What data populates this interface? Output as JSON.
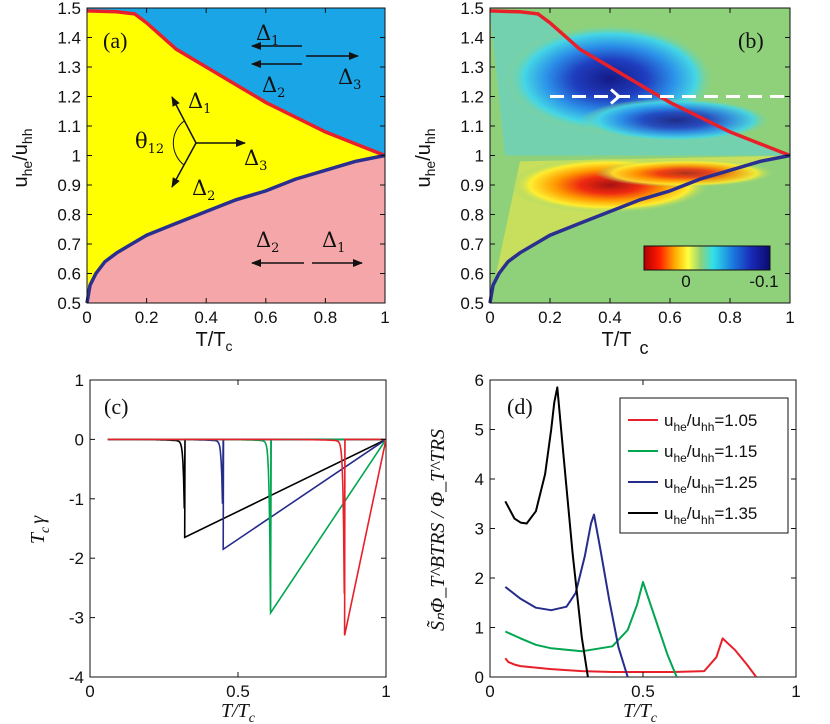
{
  "figure": {
    "panel_a": {
      "label": "(a)",
      "xlabel": "T/T",
      "xlabel_sub": "c",
      "ylabel": "u",
      "ylabel_sub1": "he",
      "ylabel_mid": "/u",
      "ylabel_sub2": "hh",
      "theta_label": "θ",
      "theta_sub": "12",
      "delta": "Δ",
      "idx1": "1",
      "idx2": "2",
      "idx3": "3",
      "colors": {
        "blue_region": "#1aa6e6",
        "yellow_region": "#ffff00",
        "pink_region": "#f4a6a8",
        "upper_boundary": "#e8202a",
        "lower_boundary": "#2b2f8f"
      }
    },
    "panel_b": {
      "label": "(b)",
      "xlabel": "T/T",
      "xlabel_sub": "c",
      "ylabel": "u",
      "ylabel_sub1": "he",
      "ylabel_mid": "/u",
      "ylabel_sub2": "hh",
      "colorbar_ticks": [
        "0",
        "-0.1"
      ],
      "colors": {
        "background": "#8fd17a"
      }
    },
    "panel_c": {
      "label": "(c)",
      "xlabel": "T/T",
      "xlabel_sub": "c",
      "ylabel": "T",
      "ylabel_sub": "c",
      "ylabel_sym": "γ"
    },
    "panel_d": {
      "label": "(d)",
      "xlabel": "T/T",
      "xlabel_sub": "c",
      "ylabel": "S̃ₙΦ_T^BTRS / Φ_T^TRS"
    }
  },
  "chart_data": [
    {
      "panel": "a",
      "type": "area",
      "x": [
        0,
        0.1,
        0.16,
        0.2,
        0.3,
        0.4,
        0.5,
        0.6,
        0.7,
        0.8,
        0.9,
        1.0
      ],
      "upper_boundary": [
        1.49,
        1.487,
        1.48,
        1.45,
        1.36,
        1.3,
        1.24,
        1.18,
        1.13,
        1.08,
        1.04,
        1.0
      ],
      "lower_boundary_x": [
        0,
        0.01,
        0.03,
        0.06,
        0.1,
        0.2,
        0.3,
        0.4,
        0.5,
        0.6,
        0.7,
        0.8,
        0.9,
        1.0
      ],
      "lower_boundary": [
        0.5,
        0.56,
        0.6,
        0.64,
        0.67,
        0.73,
        0.77,
        0.81,
        0.85,
        0.88,
        0.92,
        0.95,
        0.98,
        1.0
      ],
      "xlim": [
        0,
        1
      ],
      "ylim": [
        0.5,
        1.5
      ],
      "xticks": [
        "0",
        "0.2",
        "0.4",
        "0.6",
        "0.8",
        "1"
      ],
      "yticks": [
        "0.5",
        "0.6",
        "0.7",
        "0.8",
        "0.9",
        "1",
        "1.1",
        "1.2",
        "1.3",
        "1.4",
        "1.5"
      ]
    },
    {
      "panel": "b",
      "type": "heatmap",
      "xlim": [
        0,
        1
      ],
      "ylim": [
        0.5,
        1.5
      ],
      "dashed_line_y": 1.2,
      "xticks": [
        "0",
        "0.2",
        "0.4",
        "0.6",
        "0.8",
        "1"
      ],
      "yticks": [
        "0.5",
        "0.6",
        "0.7",
        "0.8",
        "0.9",
        "1",
        "1.1",
        "1.2",
        "1.3",
        "1.4",
        "1.5"
      ]
    },
    {
      "panel": "c",
      "type": "line",
      "xlim": [
        0,
        1
      ],
      "ylim": [
        -4,
        1
      ],
      "xticks": [
        "0",
        "0.5",
        "1"
      ],
      "yticks": [
        "-4",
        "-3",
        "-2",
        "-1",
        "0",
        "1"
      ],
      "series": [
        {
          "name": "1.35",
          "color": "#000000",
          "dip_x": 0.32,
          "min": -1.65
        },
        {
          "name": "1.25",
          "color": "#252c8a",
          "dip_x": 0.45,
          "min": -1.85
        },
        {
          "name": "1.15",
          "color": "#00a650",
          "dip_x": 0.61,
          "min": -2.92
        },
        {
          "name": "1.05",
          "color": "#e8202a",
          "dip_x": 0.86,
          "min": -3.3
        }
      ]
    },
    {
      "panel": "d",
      "type": "line",
      "xlim": [
        0,
        1
      ],
      "ylim": [
        0,
        6
      ],
      "xticks": [
        "0",
        "0.5",
        "1"
      ],
      "yticks": [
        "0",
        "1",
        "2",
        "3",
        "4",
        "5",
        "6"
      ],
      "legend_position": "top-right",
      "series": [
        {
          "name": "u_he/u_hh=1.05",
          "legend": [
            "u",
            "he",
            "/u",
            "hh",
            "=1.05"
          ],
          "color": "#e8202a",
          "x": [
            0.05,
            0.06,
            0.08,
            0.1,
            0.2,
            0.3,
            0.4,
            0.5,
            0.6,
            0.7,
            0.74,
            0.76,
            0.8,
            0.84,
            0.87
          ],
          "y": [
            0.38,
            0.3,
            0.25,
            0.22,
            0.16,
            0.12,
            0.1,
            0.1,
            0.1,
            0.12,
            0.4,
            0.78,
            0.55,
            0.25,
            0.0
          ]
        },
        {
          "name": "u_he/u_hh=1.15",
          "legend": [
            "u",
            "he",
            "/u",
            "hh",
            "=1.15"
          ],
          "color": "#00a650",
          "x": [
            0.05,
            0.1,
            0.15,
            0.2,
            0.3,
            0.4,
            0.45,
            0.48,
            0.5,
            0.52,
            0.55,
            0.58,
            0.61
          ],
          "y": [
            0.92,
            0.78,
            0.65,
            0.58,
            0.52,
            0.62,
            0.95,
            1.45,
            1.92,
            1.55,
            1.0,
            0.45,
            0.0
          ]
        },
        {
          "name": "u_he/u_hh=1.25",
          "legend": [
            "u",
            "he",
            "/u",
            "hh",
            "=1.25"
          ],
          "color": "#252c8a",
          "x": [
            0.05,
            0.1,
            0.15,
            0.2,
            0.25,
            0.28,
            0.31,
            0.33,
            0.34,
            0.36,
            0.39,
            0.42,
            0.45
          ],
          "y": [
            1.82,
            1.58,
            1.4,
            1.35,
            1.42,
            1.7,
            2.45,
            3.1,
            3.28,
            2.6,
            1.55,
            0.6,
            0.0
          ]
        },
        {
          "name": "u_he/u_hh=1.35",
          "legend": [
            "u",
            "he",
            "/u",
            "hh",
            "=1.35"
          ],
          "color": "#000000",
          "x": [
            0.05,
            0.08,
            0.1,
            0.12,
            0.15,
            0.18,
            0.2,
            0.21,
            0.22,
            0.24,
            0.27,
            0.3,
            0.32
          ],
          "y": [
            3.55,
            3.2,
            3.12,
            3.1,
            3.35,
            4.1,
            5.0,
            5.55,
            5.85,
            4.5,
            2.5,
            0.8,
            0.0
          ]
        }
      ]
    }
  ]
}
